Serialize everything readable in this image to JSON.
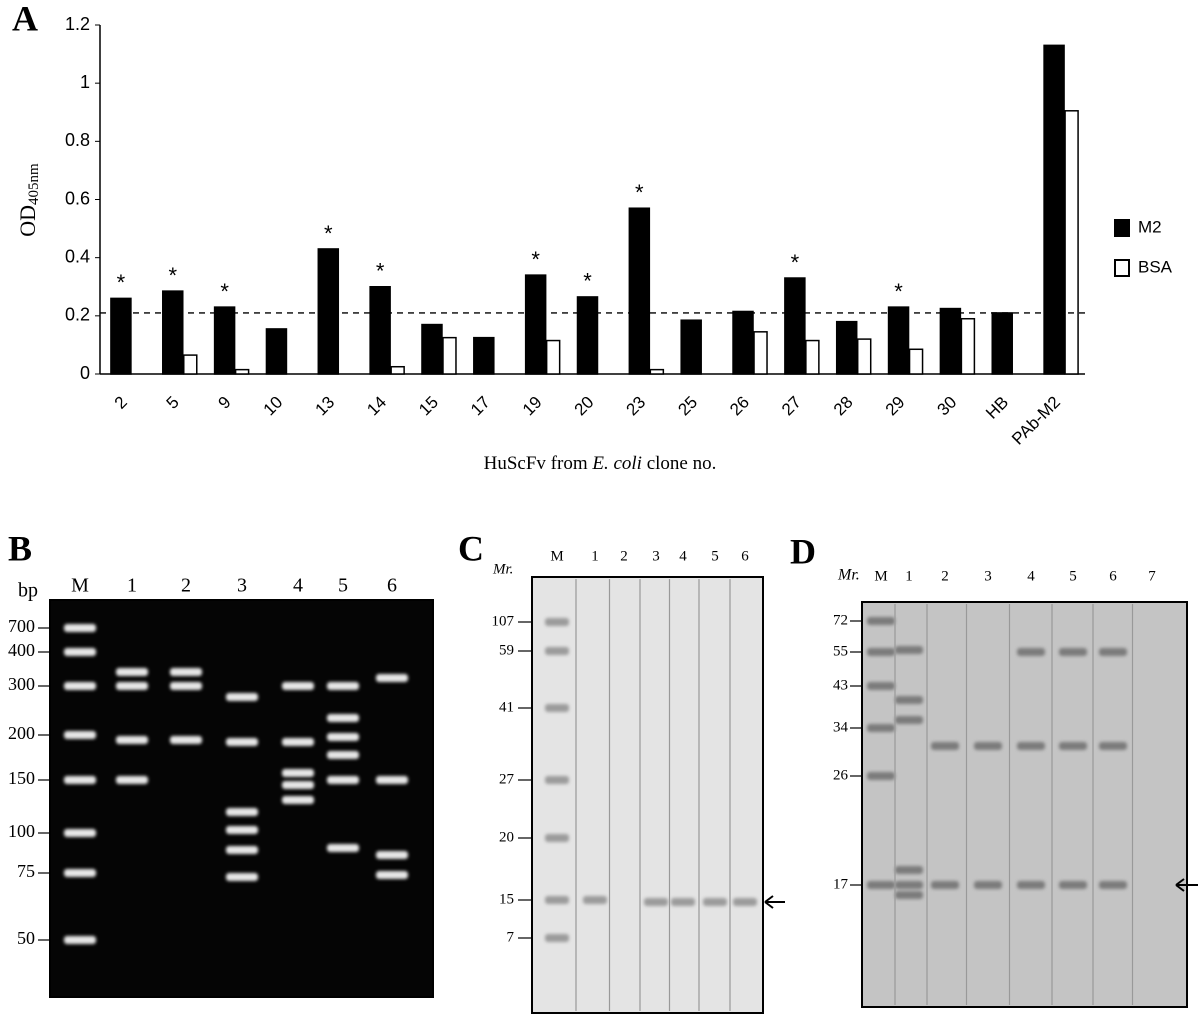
{
  "chart_data": {
    "type": "bar",
    "panel_label": "A",
    "y_label": "OD",
    "y_label_sub": "405nm",
    "x_label_parts": [
      "HuScFv from ",
      "E. coli",
      " clone no."
    ],
    "categories": [
      "2",
      "5",
      "9",
      "10",
      "13",
      "14",
      "15",
      "17",
      "19",
      "20",
      "23",
      "25",
      "26",
      "27",
      "28",
      "29",
      "30",
      "HB",
      "PAb-M2"
    ],
    "series": [
      {
        "name": "M2",
        "color": "#000000",
        "values": [
          0.26,
          0.285,
          0.23,
          0.155,
          0.43,
          0.3,
          0.17,
          0.125,
          0.34,
          0.265,
          0.57,
          0.185,
          0.215,
          0.33,
          0.18,
          0.23,
          0.225,
          0.21,
          1.13
        ]
      },
      {
        "name": "BSA",
        "color": "#ffffff",
        "values": [
          null,
          0.065,
          0.015,
          null,
          null,
          0.025,
          0.125,
          null,
          0.115,
          null,
          0.015,
          null,
          0.145,
          0.115,
          0.12,
          0.085,
          0.19,
          null,
          0.905
        ]
      }
    ],
    "significance": [
      "*",
      "*",
      "*",
      null,
      "*",
      "*",
      null,
      null,
      "*",
      "*",
      "*",
      null,
      null,
      "*",
      null,
      "*",
      null,
      null,
      null
    ],
    "cutoff": 0.21,
    "ylim": [
      0,
      1.2
    ],
    "yticks": [
      0,
      0.2,
      0.4,
      0.6,
      0.8,
      1,
      1.2
    ],
    "grid": false,
    "legend": "right"
  },
  "gels": [
    {
      "panel_label": "B",
      "unit": "bp",
      "lanes": [
        "M",
        "1",
        "2",
        "3",
        "4",
        "5",
        "6"
      ],
      "markers": [
        "700",
        "400",
        "300",
        "200",
        "150",
        "100",
        "75",
        "50"
      ]
    },
    {
      "panel_label": "C",
      "unit": "Mr.",
      "lanes": [
        "M",
        "1",
        "2",
        "3",
        "4",
        "5",
        "6"
      ],
      "markers": [
        "107",
        "59",
        "41",
        "27",
        "20",
        "15",
        "7"
      ]
    },
    {
      "panel_label": "D",
      "unit": "Mr.",
      "lanes": [
        "M",
        "1",
        "2",
        "3",
        "4",
        "5",
        "6",
        "7"
      ],
      "markers": [
        "72",
        "55",
        "43",
        "34",
        "26",
        "17"
      ]
    }
  ]
}
